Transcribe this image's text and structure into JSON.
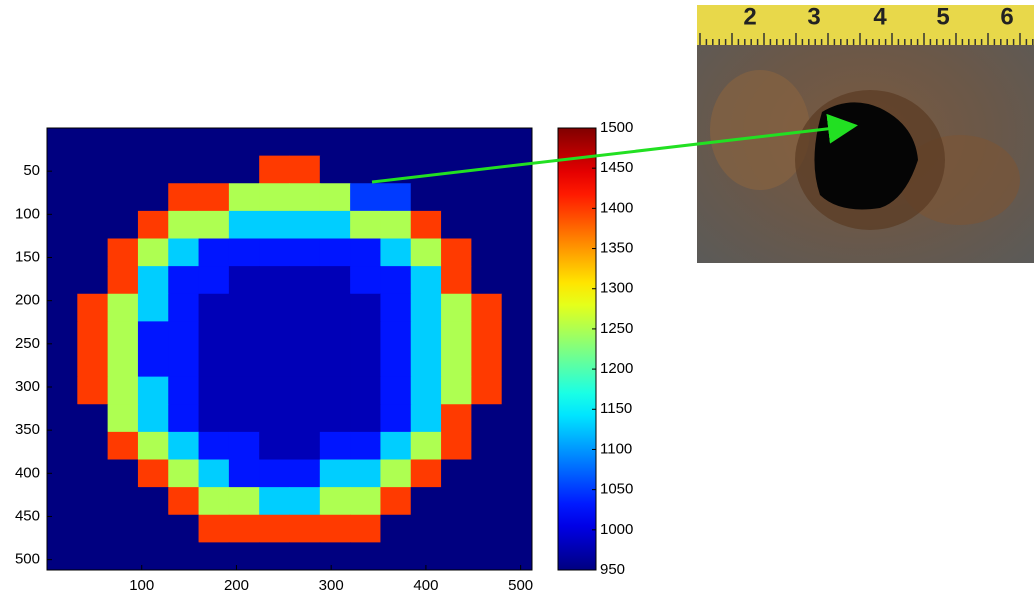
{
  "chart_data": {
    "type": "heatmap",
    "xlim": [
      0,
      512
    ],
    "ylim": [
      0,
      512
    ],
    "y_reversed": true,
    "xticks": [
      100,
      200,
      300,
      400,
      500
    ],
    "yticks": [
      50,
      100,
      150,
      200,
      250,
      300,
      350,
      400,
      450,
      500
    ],
    "clim": [
      950,
      1500
    ],
    "cticks": [
      950,
      1000,
      1050,
      1100,
      1150,
      1200,
      1250,
      1300,
      1350,
      1400,
      1450,
      1500
    ],
    "colormap": "jet",
    "z": [
      [
        950,
        950,
        950,
        950,
        950,
        950,
        950,
        950,
        950,
        950,
        950,
        950,
        950,
        950,
        950,
        950
      ],
      [
        950,
        950,
        950,
        950,
        950,
        950,
        950,
        1400,
        1400,
        950,
        950,
        950,
        950,
        950,
        950,
        950
      ],
      [
        950,
        950,
        950,
        950,
        1400,
        1400,
        1250,
        1250,
        1250,
        1250,
        1050,
        1050,
        950,
        950,
        950,
        950
      ],
      [
        950,
        950,
        950,
        1400,
        1250,
        1250,
        1130,
        1130,
        1130,
        1130,
        1250,
        1250,
        1400,
        950,
        950,
        950
      ],
      [
        950,
        950,
        1400,
        1250,
        1130,
        1030,
        1030,
        1030,
        1030,
        1030,
        1030,
        1130,
        1250,
        1400,
        950,
        950
      ],
      [
        950,
        950,
        1400,
        1130,
        1030,
        1030,
        980,
        980,
        980,
        980,
        1030,
        1030,
        1130,
        1400,
        950,
        950
      ],
      [
        950,
        1400,
        1250,
        1130,
        1030,
        980,
        980,
        980,
        980,
        980,
        980,
        1030,
        1130,
        1250,
        1400,
        950
      ],
      [
        950,
        1400,
        1250,
        1030,
        1030,
        980,
        980,
        980,
        980,
        980,
        980,
        1030,
        1130,
        1250,
        1400,
        950
      ],
      [
        950,
        1400,
        1250,
        1030,
        1030,
        980,
        980,
        980,
        980,
        980,
        980,
        1030,
        1130,
        1250,
        1400,
        950
      ],
      [
        950,
        1400,
        1250,
        1130,
        1030,
        980,
        980,
        980,
        980,
        980,
        980,
        1030,
        1130,
        1250,
        1400,
        950
      ],
      [
        950,
        950,
        1250,
        1130,
        1030,
        980,
        980,
        980,
        980,
        980,
        980,
        1030,
        1130,
        1400,
        950,
        950
      ],
      [
        950,
        950,
        1400,
        1250,
        1130,
        1030,
        1030,
        980,
        980,
        1030,
        1030,
        1130,
        1250,
        1400,
        950,
        950
      ],
      [
        950,
        950,
        950,
        1400,
        1250,
        1130,
        1030,
        1030,
        1030,
        1130,
        1130,
        1250,
        1400,
        950,
        950,
        950
      ],
      [
        950,
        950,
        950,
        950,
        1400,
        1250,
        1250,
        1130,
        1130,
        1250,
        1250,
        1400,
        950,
        950,
        950,
        950
      ],
      [
        950,
        950,
        950,
        950,
        950,
        1400,
        1400,
        1400,
        1400,
        1400,
        1400,
        950,
        950,
        950,
        950,
        950
      ],
      [
        950,
        950,
        950,
        950,
        950,
        950,
        950,
        950,
        950,
        950,
        950,
        950,
        950,
        950,
        950,
        950
      ]
    ]
  },
  "photo": {
    "ruler_labels": [
      2,
      3,
      4,
      5,
      6
    ]
  }
}
